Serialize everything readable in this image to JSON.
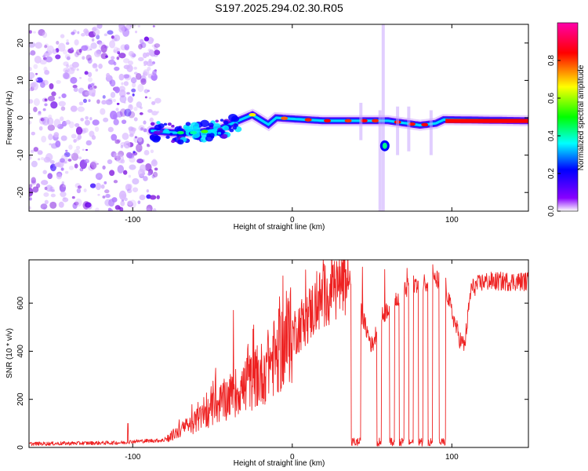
{
  "title": "S197.2025.294.02.30.R05",
  "chart_data": [
    {
      "type": "heatmap",
      "name": "spectrogram",
      "xlabel": "Height of straight line (km)",
      "ylabel": "Frequency (Hz)",
      "xlim": [
        -165,
        148
      ],
      "ylim": [
        -25,
        25
      ],
      "xticks": [
        -100,
        0,
        100
      ],
      "yticks": [
        -20,
        -10,
        0,
        10,
        20
      ],
      "colorbar": {
        "label": "Normalized spectral amplitude",
        "ticks": [
          0.0,
          0.2,
          0.4,
          0.6,
          0.8
        ],
        "tick_labels": [
          "0.0",
          "0.2",
          "0.4",
          "0.6",
          "0.8"
        ],
        "range": [
          0,
          1
        ],
        "colors": [
          "#ffffff",
          "#8800ff",
          "#0000ff",
          "#00ffff",
          "#00ff00",
          "#ffff00",
          "#ff0000",
          "#ff00aa"
        ]
      },
      "features": {
        "noise_region_km": [
          -165,
          -88
        ],
        "signal_track": [
          {
            "x": -88,
            "y": -3.5
          },
          {
            "x": -75,
            "y": -4
          },
          {
            "x": -60,
            "y": -4
          },
          {
            "x": -45,
            "y": -3
          },
          {
            "x": -35,
            "y": -1
          },
          {
            "x": -25,
            "y": 0.8
          },
          {
            "x": -15,
            "y": -1.8
          },
          {
            "x": -10,
            "y": 0
          },
          {
            "x": 0,
            "y": -0.3
          },
          {
            "x": 20,
            "y": -0.8
          },
          {
            "x": 50,
            "y": -0.8
          },
          {
            "x": 60,
            "y": -0.8
          },
          {
            "x": 80,
            "y": -2
          },
          {
            "x": 90,
            "y": -1.5
          },
          {
            "x": 95,
            "y": -0.5
          },
          {
            "x": 148,
            "y": -0.8
          }
        ],
        "isolated_blob": {
          "x": 58,
          "y": -7.5
        }
      }
    },
    {
      "type": "line",
      "name": "snr",
      "xlabel": "Height of straight line (km)",
      "ylabel": "SNR (10 * v/v)",
      "xlim": [
        -165,
        148
      ],
      "ylim": [
        0,
        780
      ],
      "xticks": [
        -100,
        0,
        100
      ],
      "yticks": [
        0,
        200,
        400,
        600
      ],
      "color": "#ee2222",
      "series": [
        {
          "name": "SNR",
          "envelope": {
            "x": [
              -165,
              -105,
              -100,
              -80,
              -78,
              -60,
              -40,
              -20,
              0,
              20,
              30,
              38,
              45,
              50,
              55,
              60,
              65,
              75,
              85,
              95,
              100,
              105,
              108,
              112,
              120,
              148
            ],
            "y": [
              15,
              20,
              25,
              30,
              40,
              110,
              210,
              300,
              470,
              630,
              680,
              700,
              520,
              420,
              530,
              580,
              620,
              680,
              690,
              700,
              560,
              450,
              420,
              660,
              690,
              690
            ]
          },
          "dropouts_km": [
            [
              37,
              43
            ],
            [
              53,
              56
            ],
            [
              61,
              64
            ],
            [
              67,
              70
            ],
            [
              73,
              76
            ],
            [
              79,
              82
            ],
            [
              85,
              88
            ],
            [
              92,
              96
            ]
          ],
          "spikes": [
            {
              "x": -103,
              "y": 100
            },
            {
              "x": -37,
              "y": 570
            },
            {
              "x": -48,
              "y": 330
            },
            {
              "x": -28,
              "y": 410
            },
            {
              "x": -15,
              "y": 460
            },
            {
              "x": 44,
              "y": 750
            },
            {
              "x": 58,
              "y": 740
            },
            {
              "x": 72,
              "y": 745
            },
            {
              "x": 88,
              "y": 760
            }
          ]
        }
      ]
    }
  ]
}
